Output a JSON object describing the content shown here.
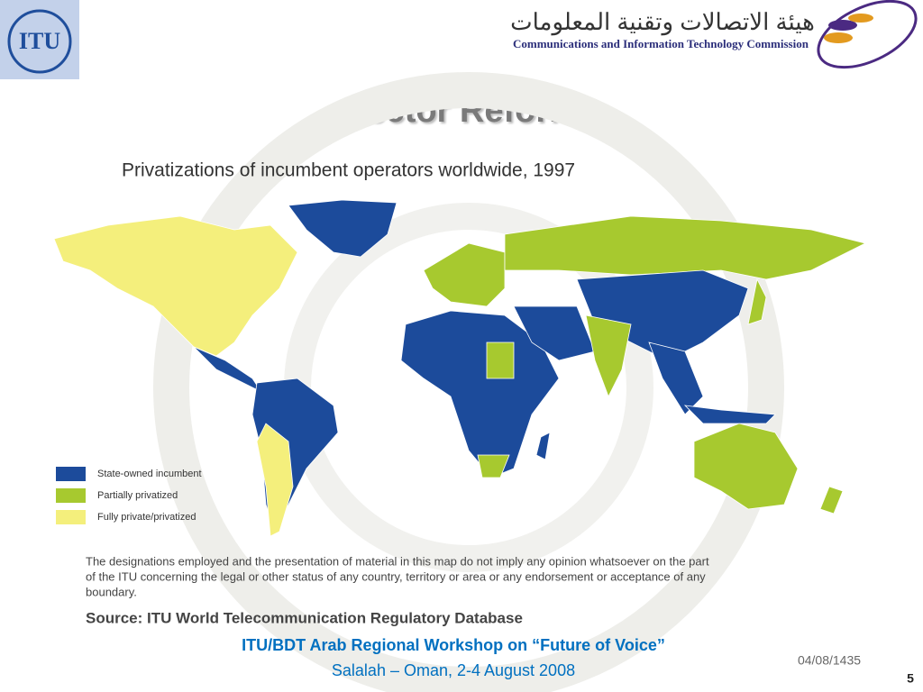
{
  "header": {
    "logo_left": "ITU",
    "org_arabic": "هيئة الاتصالات وتقنية المعلومات",
    "org_english": "Communications and Information Technology Commission"
  },
  "slide_title": "Sector Reform",
  "map": {
    "title": "Privatizations of incumbent operators worldwide, 1997",
    "legend": [
      {
        "label": "State-owned incumbent",
        "color": "#1c4b9b"
      },
      {
        "label": "Partially privatized",
        "color": "#a7c92f"
      },
      {
        "label": "Fully private/privatized",
        "color": "#f4ef7c"
      }
    ],
    "disclaimer": [
      "The designations employed and the presentation of material in this map do not imply any opinion whatsoever on the part",
      "of the ITU concerning the legal or other status of any country, territory or area or any endorsement or acceptance of any",
      "boundary."
    ],
    "source": "Source: ITU World Telecommunication Regulatory Database"
  },
  "footer": {
    "line1": "ITU/BDT Arab Regional Workshop on “Future of Voice”",
    "line2": "Salalah – Oman, 2-4 August 2008",
    "date": "04/08/1435",
    "page": "5"
  }
}
